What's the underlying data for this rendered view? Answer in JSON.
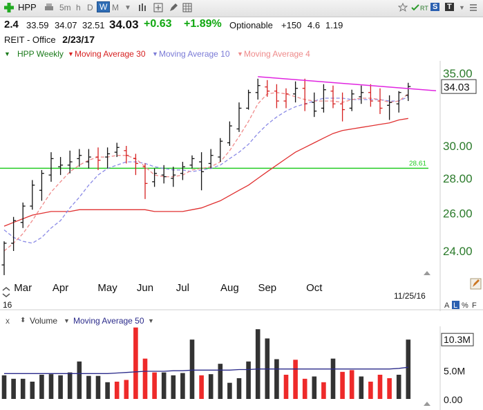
{
  "toolbar": {
    "symbol": "HPP",
    "timeframes": [
      "5m",
      "h",
      "D",
      "W",
      "M"
    ],
    "active_timeframe": "W",
    "rt_label": "RT",
    "s_label": "S",
    "t_label": "T"
  },
  "quote": {
    "last_change_left": "2.4",
    "open": "33.59",
    "high": "34.07",
    "low": "32.51",
    "last": "34.03",
    "change": "+0.63",
    "change_pct": "+1.89%",
    "optionable": "Optionable",
    "v1": "+150",
    "v2": "4.6",
    "v3": "1.19"
  },
  "subline": {
    "sector": "REIT - Office",
    "date": "2/23/17"
  },
  "legend": {
    "series_name": "HPP Weekly",
    "ma30": "Moving Average 30",
    "ma10": "Moving Average 10",
    "ma4": "Moving Average 4",
    "volume": "Volume",
    "vol_ma50": "Moving Average 50",
    "x_mark": "x"
  },
  "colors": {
    "ma30": "#e03030",
    "ma10": "#8a8ae6",
    "ma4": "#f08a8a",
    "trendline": "#e024e0",
    "support": "#22cc22",
    "up_bar": "#111111",
    "down_bar": "#d62020",
    "vol_up": "#333333",
    "vol_down": "#ee2a2a",
    "vol_ma": "#2a2a8a",
    "axis_price": "#2a7a2a"
  },
  "chart_data": [
    {
      "type": "ohlc",
      "title": "",
      "y_ticks": [
        "35.00",
        "30.00",
        "28.00",
        "26.00",
        "24.00"
      ],
      "y_tick_values": [
        35,
        30,
        28,
        26,
        24
      ],
      "ylim": [
        22.5,
        35.6
      ],
      "scale": "log",
      "x_tick_labels": [
        "Mar",
        "Apr",
        "May",
        "Jun",
        "Jul",
        "Aug",
        "Sep",
        "Oct"
      ],
      "x_tick_index": [
        2,
        6,
        11,
        15,
        19,
        24,
        28,
        33
      ],
      "last_price_label": "34.03",
      "support_level": 28.61,
      "support_label": "28.61",
      "date_label": "11/25/16",
      "left_corner_label": "16",
      "bars": [
        {
          "o": 23.3,
          "h": 24.5,
          "l": 22.8,
          "c": 24.4,
          "up": true
        },
        {
          "o": 24.4,
          "h": 25.8,
          "l": 24.0,
          "c": 25.6,
          "up": true
        },
        {
          "o": 25.5,
          "h": 26.6,
          "l": 25.2,
          "c": 26.4,
          "up": true
        },
        {
          "o": 26.4,
          "h": 27.9,
          "l": 26.2,
          "c": 27.6,
          "up": true
        },
        {
          "o": 27.3,
          "h": 28.5,
          "l": 26.7,
          "c": 28.3,
          "up": true
        },
        {
          "o": 28.2,
          "h": 29.6,
          "l": 27.8,
          "c": 29.2,
          "up": true
        },
        {
          "o": 28.7,
          "h": 29.3,
          "l": 28.2,
          "c": 28.8,
          "up": true
        },
        {
          "o": 28.8,
          "h": 29.7,
          "l": 28.3,
          "c": 29.0,
          "up": true
        },
        {
          "o": 29.2,
          "h": 29.8,
          "l": 28.7,
          "c": 29.4,
          "up": true
        },
        {
          "o": 29.0,
          "h": 29.8,
          "l": 28.6,
          "c": 29.3,
          "up": true
        },
        {
          "o": 29.3,
          "h": 29.9,
          "l": 28.5,
          "c": 29.1,
          "up": false
        },
        {
          "o": 29.3,
          "h": 29.9,
          "l": 28.6,
          "c": 29.5,
          "up": true
        },
        {
          "o": 29.6,
          "h": 30.2,
          "l": 29.3,
          "c": 29.9,
          "up": true
        },
        {
          "o": 29.7,
          "h": 30.0,
          "l": 28.9,
          "c": 29.4,
          "up": false
        },
        {
          "o": 29.2,
          "h": 29.5,
          "l": 28.2,
          "c": 28.9,
          "up": false
        },
        {
          "o": 28.7,
          "h": 28.9,
          "l": 26.8,
          "c": 27.7,
          "up": false
        },
        {
          "o": 27.8,
          "h": 28.6,
          "l": 27.5,
          "c": 28.3,
          "up": true
        },
        {
          "o": 28.2,
          "h": 28.8,
          "l": 27.7,
          "c": 28.1,
          "up": true
        },
        {
          "o": 28.0,
          "h": 28.7,
          "l": 27.5,
          "c": 28.2,
          "up": true
        },
        {
          "o": 28.3,
          "h": 29.0,
          "l": 27.9,
          "c": 28.7,
          "up": true
        },
        {
          "o": 28.8,
          "h": 29.4,
          "l": 28.6,
          "c": 29.2,
          "up": true
        },
        {
          "o": 29.0,
          "h": 29.6,
          "l": 27.3,
          "c": 28.4,
          "up": true
        },
        {
          "o": 28.9,
          "h": 29.8,
          "l": 28.6,
          "c": 29.4,
          "up": true
        },
        {
          "o": 29.3,
          "h": 30.5,
          "l": 29.0,
          "c": 30.3,
          "up": true
        },
        {
          "o": 30.2,
          "h": 31.6,
          "l": 30.0,
          "c": 31.3,
          "up": true
        },
        {
          "o": 31.1,
          "h": 32.9,
          "l": 30.9,
          "c": 32.5,
          "up": true
        },
        {
          "o": 32.5,
          "h": 33.8,
          "l": 32.4,
          "c": 33.6,
          "up": true
        },
        {
          "o": 33.6,
          "h": 34.6,
          "l": 33.1,
          "c": 34.1,
          "up": true
        },
        {
          "o": 34.0,
          "h": 34.5,
          "l": 33.3,
          "c": 33.7,
          "up": false
        },
        {
          "o": 33.7,
          "h": 34.2,
          "l": 32.5,
          "c": 33.0,
          "up": false
        },
        {
          "o": 33.0,
          "h": 33.9,
          "l": 32.5,
          "c": 33.5,
          "up": false
        },
        {
          "o": 33.5,
          "h": 34.4,
          "l": 32.9,
          "c": 33.9,
          "up": true
        },
        {
          "o": 33.9,
          "h": 34.6,
          "l": 32.3,
          "c": 32.8,
          "up": false
        },
        {
          "o": 32.9,
          "h": 33.6,
          "l": 31.9,
          "c": 32.3,
          "up": true
        },
        {
          "o": 32.5,
          "h": 34.2,
          "l": 32.2,
          "c": 33.8,
          "up": true
        },
        {
          "o": 33.7,
          "h": 34.1,
          "l": 32.5,
          "c": 32.8,
          "up": false
        },
        {
          "o": 32.8,
          "h": 33.6,
          "l": 31.6,
          "c": 32.4,
          "up": false
        },
        {
          "o": 32.5,
          "h": 33.8,
          "l": 32.3,
          "c": 33.5,
          "up": true
        },
        {
          "o": 33.3,
          "h": 34.1,
          "l": 32.8,
          "c": 33.6,
          "up": true
        },
        {
          "o": 33.6,
          "h": 34.2,
          "l": 32.6,
          "c": 33.0,
          "up": false
        },
        {
          "o": 33.0,
          "h": 33.9,
          "l": 32.1,
          "c": 32.5,
          "up": false
        },
        {
          "o": 32.7,
          "h": 33.4,
          "l": 31.7,
          "c": 32.9,
          "up": true
        },
        {
          "o": 32.8,
          "h": 33.7,
          "l": 32.2,
          "c": 33.6,
          "up": true
        },
        {
          "o": 33.4,
          "h": 34.3,
          "l": 33.0,
          "c": 34.03,
          "up": true
        }
      ],
      "ma30": [
        25.3,
        25.5,
        25.7,
        25.9,
        26.0,
        26.1,
        26.1,
        26.1,
        26.2,
        26.2,
        26.2,
        26.2,
        26.2,
        26.2,
        26.2,
        26.2,
        26.1,
        26.1,
        26.1,
        26.1,
        26.2,
        26.3,
        26.5,
        26.7,
        27.0,
        27.3,
        27.6,
        28.0,
        28.4,
        28.8,
        29.2,
        29.6,
        29.9,
        30.2,
        30.5,
        30.8,
        31.0,
        31.1,
        31.2,
        31.3,
        31.4,
        31.5,
        31.7,
        31.8
      ],
      "ma10": [
        25.1,
        24.7,
        24.5,
        24.4,
        24.7,
        25.2,
        25.6,
        26.3,
        26.9,
        27.6,
        28.2,
        28.6,
        28.8,
        29.0,
        29.0,
        28.9,
        28.7,
        28.6,
        28.5,
        28.5,
        28.4,
        28.5,
        28.6,
        28.8,
        29.2,
        29.6,
        30.1,
        30.8,
        31.4,
        31.9,
        32.3,
        32.6,
        32.8,
        33.0,
        33.2,
        33.2,
        33.2,
        33.1,
        33.1,
        33.1,
        33.1,
        33.0,
        33.0,
        33.3
      ],
      "ma4": [
        24.0,
        24.4,
        24.9,
        25.6,
        26.4,
        27.2,
        27.8,
        28.4,
        28.8,
        29.1,
        29.3,
        29.3,
        29.4,
        29.4,
        29.2,
        28.7,
        28.2,
        28.1,
        28.1,
        28.2,
        28.5,
        28.6,
        28.7,
        29.0,
        29.7,
        30.6,
        31.6,
        32.8,
        33.5,
        33.6,
        33.5,
        33.3,
        33.1,
        33.0,
        33.0,
        33.0,
        32.9,
        33.1,
        33.2,
        33.2,
        33.1,
        32.9,
        33.0,
        33.5
      ],
      "trendline": [
        {
          "i": 27,
          "v": 34.75
        },
        {
          "i": 43.9,
          "v": 33.8
        }
      ]
    },
    {
      "type": "bar",
      "title": "Volume",
      "y_ticks": [
        "10.3M",
        "5.0M",
        "0.00"
      ],
      "y_tick_values": [
        10.3,
        5.0,
        0.0
      ],
      "ylim": [
        0,
        12.6
      ],
      "unit": "M",
      "values": [
        4.1,
        3.5,
        3.5,
        3.0,
        4.2,
        4.3,
        4.1,
        4.6,
        6.5,
        4.0,
        4.0,
        2.9,
        3.0,
        3.3,
        12.4,
        7.0,
        4.6,
        4.6,
        4.1,
        4.5,
        10.3,
        4.1,
        4.3,
        6.1,
        2.8,
        3.6,
        6.5,
        12.1,
        10.5,
        6.9,
        4.2,
        6.8,
        3.5,
        3.9,
        2.9,
        7.0,
        4.7,
        5.0,
        3.9,
        3.0,
        4.2,
        3.6,
        4.2,
        10.3
      ],
      "up": [
        true,
        true,
        true,
        true,
        true,
        true,
        true,
        true,
        true,
        true,
        true,
        true,
        false,
        false,
        false,
        false,
        false,
        true,
        true,
        true,
        true,
        false,
        true,
        true,
        true,
        true,
        true,
        true,
        true,
        true,
        false,
        false,
        false,
        true,
        false,
        true,
        false,
        false,
        true,
        false,
        false,
        false,
        true,
        true
      ],
      "ma50": [
        4.4,
        4.4,
        4.4,
        4.4,
        4.4,
        4.4,
        4.4,
        4.4,
        4.4,
        4.4,
        4.4,
        4.4,
        4.5,
        4.6,
        4.7,
        4.8,
        4.8,
        4.8,
        4.9,
        4.9,
        5.0,
        5.0,
        5.0,
        5.0,
        5.0,
        5.1,
        5.1,
        5.2,
        5.2,
        5.2,
        5.2,
        5.2,
        5.2,
        5.2,
        5.2,
        5.2,
        5.2,
        5.2,
        5.2,
        5.2,
        5.2,
        5.2,
        5.3,
        5.5
      ],
      "last_label": "10.3M"
    }
  ]
}
